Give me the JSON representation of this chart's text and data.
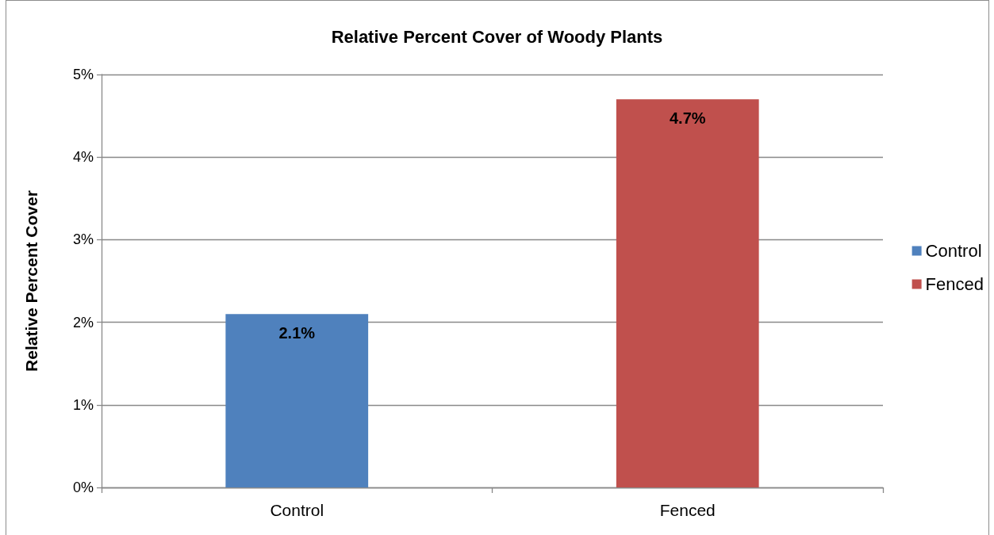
{
  "chart_data": {
    "type": "bar",
    "title": "Relative Percent Cover of Woody Plants",
    "ylabel": "Relative Percent Cover",
    "categories": [
      "Control",
      "Fenced"
    ],
    "series": [
      {
        "name": "Control",
        "color": "#4f81bd",
        "values": [
          2.1,
          null
        ],
        "value_labels": [
          "2.1%",
          null
        ]
      },
      {
        "name": "Fenced",
        "color": "#c0504d",
        "values": [
          null,
          4.7
        ],
        "value_labels": [
          null,
          "4.7%"
        ]
      }
    ],
    "ylim": [
      0,
      5
    ],
    "yticks": [
      {
        "value": 0,
        "label": "0%"
      },
      {
        "value": 1,
        "label": "1%"
      },
      {
        "value": 2,
        "label": "2%"
      },
      {
        "value": 3,
        "label": "3%"
      },
      {
        "value": 4,
        "label": "4%"
      },
      {
        "value": 5,
        "label": "5%"
      }
    ],
    "grid": "y",
    "legend": "right"
  }
}
